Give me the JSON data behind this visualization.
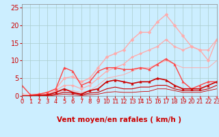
{
  "bg_color": "#cceeff",
  "grid_color": "#aacccc",
  "xlabel": "Vent moyen/en rafales ( km/h )",
  "xlim": [
    0,
    23
  ],
  "ylim": [
    0,
    26
  ],
  "xticks": [
    0,
    1,
    2,
    3,
    4,
    5,
    6,
    7,
    8,
    9,
    10,
    11,
    12,
    13,
    14,
    15,
    16,
    17,
    18,
    19,
    20,
    21,
    22,
    23
  ],
  "yticks": [
    0,
    5,
    10,
    15,
    20,
    25
  ],
  "series": [
    {
      "x": [
        0,
        1,
        2,
        3,
        4,
        5,
        6,
        7,
        8,
        9,
        10,
        11,
        12,
        13,
        14,
        15,
        16,
        17,
        18,
        19,
        20,
        21,
        22,
        23
      ],
      "y": [
        0.5,
        0.2,
        0.5,
        1,
        2,
        5,
        5.5,
        4,
        5,
        8,
        11,
        12,
        13,
        16,
        18,
        18,
        21,
        23,
        20,
        17,
        14,
        13,
        10,
        16
      ],
      "color": "#ffaaaa",
      "lw": 1.0,
      "marker": "D",
      "ms": 2.5
    },
    {
      "x": [
        0,
        1,
        2,
        3,
        4,
        5,
        6,
        7,
        8,
        9,
        10,
        11,
        12,
        13,
        14,
        15,
        16,
        17,
        18,
        19,
        20,
        21,
        22,
        23
      ],
      "y": [
        0,
        0,
        0.3,
        0.5,
        1.5,
        3,
        3,
        2,
        3,
        5,
        7,
        8,
        9,
        11,
        12,
        13,
        14,
        16,
        14,
        13,
        14,
        13,
        13,
        16
      ],
      "color": "#ffaaaa",
      "lw": 0.9,
      "marker": "D",
      "ms": 2.0
    },
    {
      "x": [
        0,
        1,
        2,
        3,
        4,
        5,
        6,
        7,
        8,
        9,
        10,
        11,
        12,
        13,
        14,
        15,
        16,
        17,
        18,
        19,
        20,
        21,
        22,
        23
      ],
      "y": [
        0,
        0,
        0,
        0.2,
        0.5,
        1.5,
        1.5,
        1,
        1.5,
        3,
        5,
        5.5,
        6,
        7,
        8,
        8,
        9,
        10,
        9,
        8,
        8,
        8,
        8,
        10
      ],
      "color": "#ffaaaa",
      "lw": 0.7,
      "marker": null,
      "ms": 0
    },
    {
      "x": [
        0,
        1,
        2,
        3,
        4,
        5,
        6,
        7,
        8,
        9,
        10,
        11,
        12,
        13,
        14,
        15,
        16,
        17,
        18,
        19,
        20,
        21,
        22,
        23
      ],
      "y": [
        3,
        0.3,
        0.5,
        1,
        2,
        8,
        7,
        3,
        4,
        7,
        8,
        8,
        7.5,
        7.5,
        8,
        7.5,
        9,
        10.5,
        9,
        4,
        2,
        3,
        4,
        4
      ],
      "color": "#ff4444",
      "lw": 1.0,
      "marker": "^",
      "ms": 2.5
    },
    {
      "x": [
        0,
        1,
        2,
        3,
        4,
        5,
        6,
        7,
        8,
        9,
        10,
        11,
        12,
        13,
        14,
        15,
        16,
        17,
        18,
        19,
        20,
        21,
        22,
        23
      ],
      "y": [
        0,
        0,
        0.2,
        0.3,
        1,
        2,
        1,
        0.5,
        1.5,
        2,
        4,
        4.5,
        4,
        3.5,
        4,
        4,
        5,
        4.5,
        3,
        2,
        2,
        2,
        3,
        4
      ],
      "color": "#cc0000",
      "lw": 1.2,
      "marker": "^",
      "ms": 2.5
    },
    {
      "x": [
        0,
        1,
        2,
        3,
        4,
        5,
        6,
        7,
        8,
        9,
        10,
        11,
        12,
        13,
        14,
        15,
        16,
        17,
        18,
        19,
        20,
        21,
        22,
        23
      ],
      "y": [
        0,
        0,
        0,
        0.1,
        0.5,
        1,
        0.8,
        0.3,
        0.8,
        1,
        2,
        2.5,
        2,
        2,
        2.5,
        2.5,
        3,
        3,
        2,
        1.5,
        1.5,
        1.5,
        2,
        3
      ],
      "color": "#cc0000",
      "lw": 0.8,
      "marker": null,
      "ms": 0
    },
    {
      "x": [
        0,
        1,
        2,
        3,
        4,
        5,
        6,
        7,
        8,
        9,
        10,
        11,
        12,
        13,
        14,
        15,
        16,
        17,
        18,
        19,
        20,
        21,
        22,
        23
      ],
      "y": [
        0,
        0,
        0,
        0,
        0.2,
        0.5,
        0.3,
        0.1,
        0.3,
        0.5,
        1,
        1.2,
        1,
        1,
        1.2,
        1.3,
        2,
        2,
        1.5,
        1,
        1,
        1,
        1.5,
        2
      ],
      "color": "#cc0000",
      "lw": 0.6,
      "marker": null,
      "ms": 0
    }
  ],
  "xlabel_color": "#cc0000",
  "xlabel_fontsize": 7.5,
  "tick_color": "#cc0000",
  "tick_fontsize": 6,
  "ytick_fontsize": 7
}
